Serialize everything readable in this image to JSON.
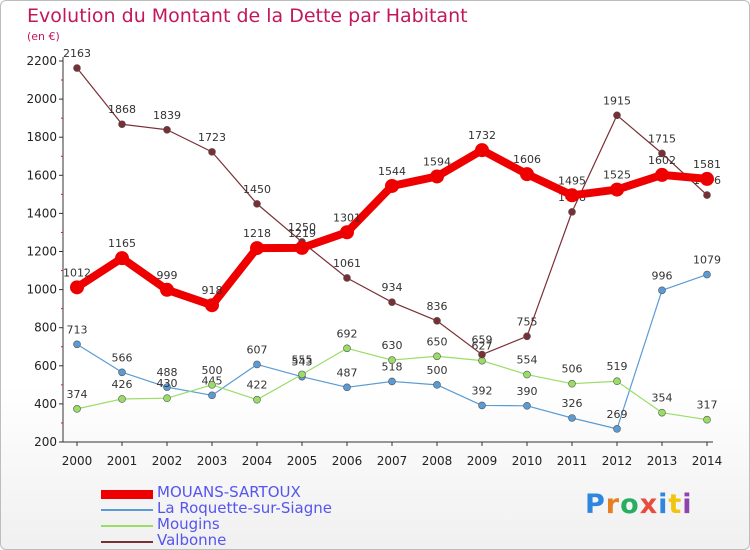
{
  "title": "Evolution du Montant de la Dette par Habitant",
  "unit": "(en €)",
  "logo": {
    "letters": [
      "P",
      "r",
      "o",
      "x",
      "i",
      "t",
      "i"
    ],
    "colors": [
      "#2e86de",
      "#e67e22",
      "#27ae60",
      "#e74c3c",
      "#2e86de",
      "#f1c40f",
      "#8e44ad"
    ]
  },
  "chart_data": {
    "type": "line",
    "x": [
      2000,
      2001,
      2002,
      2003,
      2004,
      2005,
      2006,
      2007,
      2008,
      2009,
      2010,
      2011,
      2012,
      2013,
      2014
    ],
    "ylim": [
      200,
      2200
    ],
    "yticks": [
      200,
      400,
      600,
      800,
      1000,
      1200,
      1400,
      1600,
      1800,
      2000,
      2200
    ],
    "grid": false,
    "legend": "bottom-left",
    "series": [
      {
        "name": "MOUANS-SARTOUX",
        "color": "#ee0000",
        "width": 8,
        "radius": 7,
        "values": [
          1012,
          1165,
          999,
          918,
          1218,
          1219,
          1301,
          1544,
          1594,
          1732,
          1606,
          1495,
          1525,
          1602,
          1581
        ]
      },
      {
        "name": "La Roquette-sur-Siagne",
        "color": "#5b9bd5",
        "width": 1.2,
        "radius": 3.5,
        "values": [
          713,
          566,
          488,
          445,
          607,
          543,
          487,
          518,
          500,
          392,
          390,
          326,
          269,
          996,
          1079
        ]
      },
      {
        "name": "Mougins",
        "color": "#99dd66",
        "width": 1.2,
        "radius": 3.5,
        "values": [
          374,
          426,
          430,
          500,
          422,
          555,
          692,
          630,
          650,
          627,
          554,
          506,
          519,
          354,
          317
        ]
      },
      {
        "name": "Valbonne",
        "color": "#7a2f35",
        "width": 1.2,
        "radius": 3.5,
        "values": [
          2163,
          1868,
          1839,
          1723,
          1450,
          1250,
          1061,
          934,
          836,
          659,
          755,
          1408,
          1915,
          1715,
          1496
        ]
      }
    ]
  }
}
